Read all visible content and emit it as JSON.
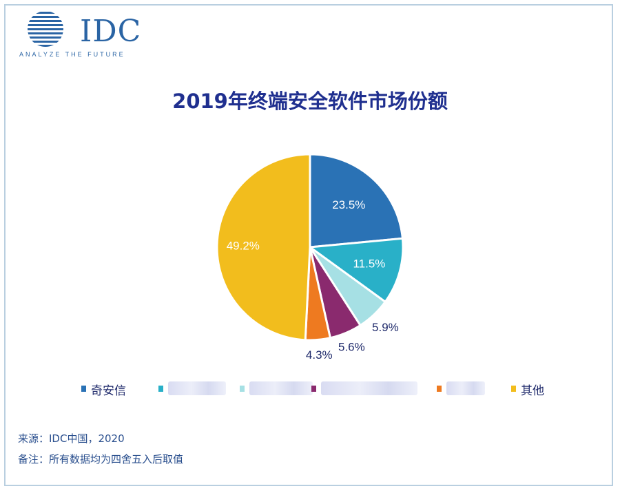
{
  "logo": {
    "word": "IDC",
    "tagline": "ANALYZE THE FUTURE",
    "color": "#2a64a4"
  },
  "chart_data": {
    "type": "pie",
    "title": "2019年终端安全软件市场份额",
    "slices": [
      {
        "label": "奇安信",
        "value": 23.5,
        "value_label": "23.5%",
        "color": "#2a72b5"
      },
      {
        "label": "",
        "value": 11.5,
        "value_label": "11.5%",
        "color": "#29b0c8"
      },
      {
        "label": "",
        "value": 5.9,
        "value_label": "5.9%",
        "color": "#a6e0e4"
      },
      {
        "label": "",
        "value": 5.6,
        "value_label": "5.6%",
        "color": "#8a2a6e"
      },
      {
        "label": "",
        "value": 4.3,
        "value_label": "4.3%",
        "color": "#ee7a20"
      },
      {
        "label": "其他",
        "value": 49.2,
        "value_label": "49.2%",
        "color": "#f2bd1d"
      }
    ],
    "legend_position": "bottom"
  },
  "notes": {
    "source": "来源：IDC中国，2020",
    "remark": "备注：所有数据均为四舍五入后取值"
  }
}
